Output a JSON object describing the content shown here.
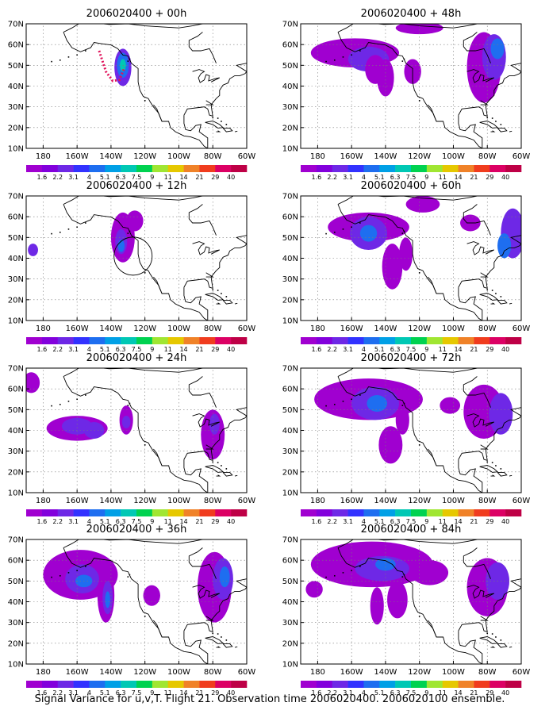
{
  "figure": {
    "caption": "Signal Variance for u,v,T. Flight 21. Observation time 2006020400. 2006020100 ensemble."
  },
  "colorbar": {
    "labels": [
      "1.6",
      "2.2",
      "3.1",
      "4",
      "5.1",
      "6.3",
      "7.5",
      "9",
      "11",
      "14",
      "21",
      "29",
      "40"
    ],
    "colors": [
      "#a000d0",
      "#8200dc",
      "#6e28e6",
      "#3232ff",
      "#1e6ef0",
      "#00a0e6",
      "#00c8b4",
      "#00d250",
      "#a0e632",
      "#e6c800",
      "#f08228",
      "#f03c1e",
      "#dc0064",
      "#be0046"
    ]
  },
  "axes": {
    "lat_labels": [
      "10N",
      "20N",
      "30N",
      "40N",
      "50N",
      "60N",
      "70N"
    ],
    "lon_labels": [
      "180",
      "160W",
      "140W",
      "120W",
      "100W",
      "80W",
      "60W"
    ]
  },
  "panels": [
    {
      "title": "2006020400 + 00h"
    },
    {
      "title": "2006020400 + 48h"
    },
    {
      "title": "2006020400 + 12h"
    },
    {
      "title": "2006020400 + 60h"
    },
    {
      "title": "2006020400 + 24h"
    },
    {
      "title": "2006020400 + 72h"
    },
    {
      "title": "2006020400 + 36h"
    },
    {
      "title": "2006020400 + 84h"
    }
  ]
}
